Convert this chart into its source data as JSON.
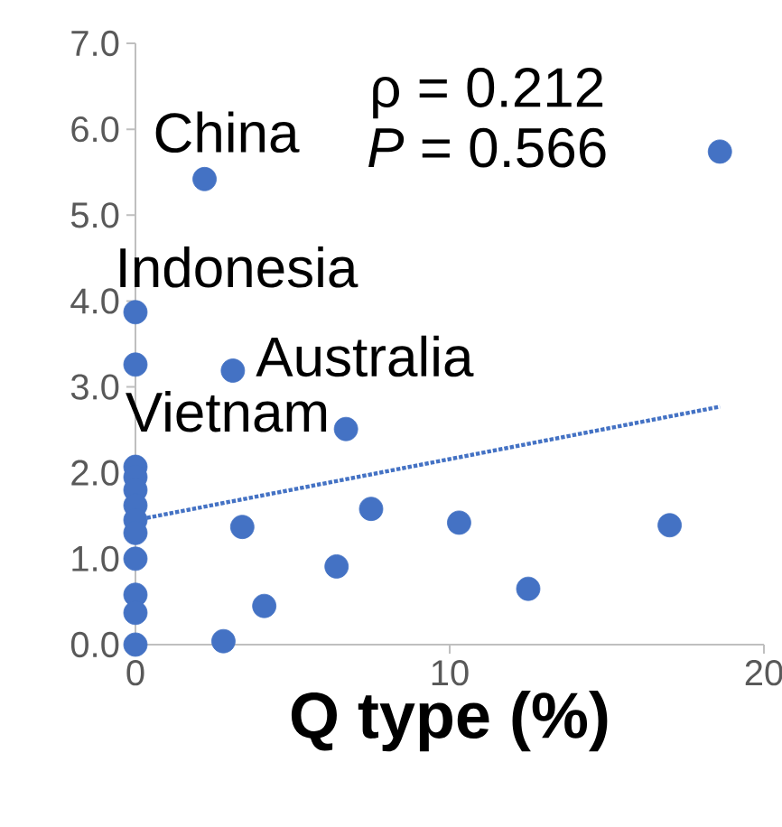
{
  "chart_data": {
    "type": "scatter",
    "xlabel": "Q type (%)",
    "xlim": [
      0,
      20
    ],
    "ylim": [
      0,
      7
    ],
    "xticks": [
      0,
      10,
      20
    ],
    "yticks": [
      {
        "value": 0,
        "label": "0.0"
      },
      {
        "value": 1,
        "label": "1.0"
      },
      {
        "value": 2,
        "label": "2.0"
      },
      {
        "value": 3,
        "label": "3.0"
      },
      {
        "value": 4,
        "label": "4.0"
      },
      {
        "value": 5,
        "label": "5.0"
      },
      {
        "value": 6,
        "label": "6.0"
      },
      {
        "value": 7,
        "label": "7.0"
      }
    ],
    "grid": false,
    "series": [
      {
        "color": "#4472c4",
        "marker": "circle",
        "x": [
          0,
          0,
          0,
          0,
          0,
          0,
          0,
          0,
          0,
          0,
          0,
          0,
          2.2,
          18.6,
          3.1,
          6.7,
          3.4,
          7.5,
          10.3,
          17.0,
          6.4,
          12.5,
          4.1,
          2.8
        ],
        "values": [
          3.87,
          3.26,
          2.07,
          1.95,
          1.8,
          1.62,
          1.45,
          1.3,
          1.0,
          0.58,
          0.37,
          0.0,
          5.42,
          5.74,
          3.19,
          2.51,
          1.37,
          1.58,
          1.42,
          1.39,
          0.91,
          0.65,
          0.45,
          0.04
        ]
      },
      {
        "type": "line",
        "color": "#4472c4",
        "line_style": "dotted",
        "marker": "none",
        "x": [
          0,
          18.6
        ],
        "values": [
          1.45,
          2.77
        ]
      }
    ],
    "annotations": [
      "ρ = 0.212",
      "*P* = 0.566",
      {
        "text": "China",
        "x": 2.2,
        "y": 5.42
      },
      {
        "text": "Indonesia",
        "x": 0,
        "y": 3.87
      },
      {
        "text": "Australia",
        "x": 3.1,
        "y": 3.19
      },
      {
        "text": "Vietnam",
        "x": 0,
        "y": 3.26
      }
    ]
  }
}
